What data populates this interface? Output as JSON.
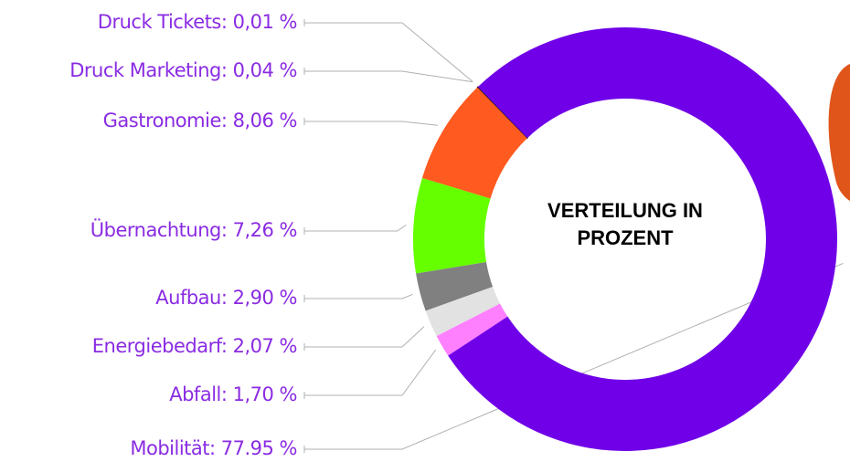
{
  "chart_data": {
    "type": "donut",
    "center_label": [
      "VERTEILUNG IN",
      "PROZENT"
    ],
    "categories": [
      "Druck Tickets: 0,01 %",
      "Druck Marketing: 0,04 %",
      "Gastronomie: 8,06 %",
      "Übernachtung: 7,26 %",
      "Aufbau: 2,90 %",
      "Energiebedarf: 2,07 %",
      "Abfall: 1,70 %",
      "Mobilität: 77.95 %"
    ],
    "values": [
      0.01,
      0.04,
      8.06,
      7.26,
      2.9,
      2.07,
      1.7,
      77.95
    ],
    "colors": [
      "#ffffff",
      "#111111",
      "#ff5a1f",
      "#66ff00",
      "#808080",
      "#e2e2e2",
      "#ff80ff",
      "#7000e8"
    ]
  }
}
